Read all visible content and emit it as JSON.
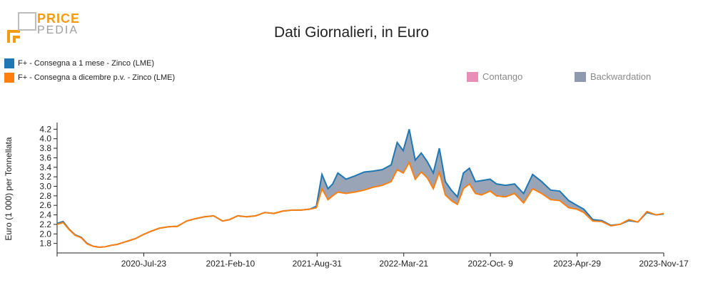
{
  "logo": {
    "line1": "PRICE",
    "line2": "PEDIA"
  },
  "chart_data": {
    "type": "area",
    "title": "Dati Giornalieri, in Euro",
    "ylabel": "Euro (1 000) per Tonnellata",
    "xlabel": "",
    "ylim": [
      1.6,
      4.25
    ],
    "yticks": [
      1.8,
      2.0,
      2.2,
      2.4,
      2.6,
      2.8,
      3.0,
      3.2,
      3.4,
      3.6,
      3.8,
      4.0,
      4.2
    ],
    "x_tick_labels": [
      "2020-Jul-23",
      "2021-Feb-10",
      "2021-Aug-31",
      "2022-Mar-21",
      "2022-Oct- 9",
      "2023-Apr-29",
      "2023-Nov-17"
    ],
    "x_start": "2020-01-06",
    "x_end": "2023-11-17",
    "legend": {
      "series_entries": [
        {
          "label": "F+ - Consegna a 1 mese - Zinco (LME)",
          "color": "#1f77b4"
        },
        {
          "label": "F+ - Consegna a dicembre p.v. - Zinco (LME)",
          "color": "#ff7f0e"
        }
      ],
      "area_entries": [
        {
          "label": "Contango",
          "color": "#e88fb8"
        },
        {
          "label": "Backwardation",
          "color": "#8e9aae"
        }
      ]
    },
    "dates": [
      "2020-01-06",
      "2020-01-20",
      "2020-02-03",
      "2020-02-17",
      "2020-03-02",
      "2020-03-16",
      "2020-03-30",
      "2020-04-13",
      "2020-04-27",
      "2020-05-11",
      "2020-05-25",
      "2020-06-08",
      "2020-06-22",
      "2020-07-06",
      "2020-07-23",
      "2020-08-10",
      "2020-08-31",
      "2020-09-21",
      "2020-10-12",
      "2020-11-02",
      "2020-11-23",
      "2020-12-14",
      "2021-01-04",
      "2021-01-25",
      "2021-02-10",
      "2021-03-01",
      "2021-03-22",
      "2021-04-12",
      "2021-05-03",
      "2021-05-24",
      "2021-06-14",
      "2021-07-05",
      "2021-07-26",
      "2021-08-16",
      "2021-08-31",
      "2021-09-13",
      "2021-09-27",
      "2021-10-08",
      "2021-10-20",
      "2021-11-08",
      "2021-11-29",
      "2021-12-20",
      "2022-01-10",
      "2022-01-31",
      "2022-02-21",
      "2022-03-07",
      "2022-03-21",
      "2022-04-04",
      "2022-04-18",
      "2022-05-02",
      "2022-05-16",
      "2022-05-30",
      "2022-06-13",
      "2022-06-27",
      "2022-07-11",
      "2022-07-25",
      "2022-08-08",
      "2022-08-22",
      "2022-09-05",
      "2022-09-19",
      "2022-10-09",
      "2022-10-24",
      "2022-11-14",
      "2022-12-05",
      "2022-12-26",
      "2023-01-16",
      "2023-02-06",
      "2023-02-27",
      "2023-03-20",
      "2023-04-10",
      "2023-04-29",
      "2023-05-15",
      "2023-06-05",
      "2023-06-26",
      "2023-07-17",
      "2023-08-07",
      "2023-08-28",
      "2023-09-18",
      "2023-10-09",
      "2023-10-30",
      "2023-11-17"
    ],
    "series": [
      {
        "name": "F+ - Consegna a 1 mese - Zinco (LME)",
        "color": "#1f77b4",
        "values": [
          2.22,
          2.26,
          2.1,
          1.98,
          1.93,
          1.8,
          1.74,
          1.72,
          1.73,
          1.76,
          1.78,
          1.82,
          1.86,
          1.9,
          1.98,
          2.05,
          2.12,
          2.15,
          2.16,
          2.27,
          2.32,
          2.36,
          2.38,
          2.27,
          2.3,
          2.38,
          2.36,
          2.38,
          2.45,
          2.43,
          2.48,
          2.5,
          2.5,
          2.52,
          2.58,
          3.25,
          2.95,
          3.05,
          3.28,
          3.15,
          3.22,
          3.3,
          3.32,
          3.35,
          3.45,
          3.92,
          3.75,
          4.2,
          3.55,
          3.7,
          3.52,
          3.28,
          3.8,
          3.1,
          2.92,
          2.78,
          3.28,
          3.38,
          3.1,
          3.12,
          3.15,
          3.05,
          3.02,
          3.05,
          2.85,
          3.25,
          3.1,
          2.92,
          2.9,
          2.7,
          2.6,
          2.52,
          2.3,
          2.28,
          2.18,
          2.2,
          2.28,
          2.25,
          2.45,
          2.4,
          2.42
        ]
      },
      {
        "name": "F+ - Consegna a dicembre p.v. - Zinco (LME)",
        "color": "#ff7f0e",
        "values": [
          2.2,
          2.24,
          2.09,
          1.97,
          1.92,
          1.79,
          1.74,
          1.72,
          1.73,
          1.76,
          1.78,
          1.82,
          1.86,
          1.9,
          1.98,
          2.05,
          2.12,
          2.15,
          2.16,
          2.27,
          2.32,
          2.36,
          2.38,
          2.27,
          2.3,
          2.38,
          2.36,
          2.38,
          2.45,
          2.43,
          2.48,
          2.5,
          2.5,
          2.52,
          2.55,
          2.95,
          2.72,
          2.8,
          2.88,
          2.85,
          2.88,
          2.92,
          2.98,
          3.02,
          3.1,
          3.35,
          3.28,
          3.5,
          3.15,
          3.3,
          3.18,
          2.95,
          3.3,
          2.82,
          2.7,
          2.62,
          2.95,
          3.05,
          2.85,
          2.82,
          2.9,
          2.8,
          2.78,
          2.85,
          2.65,
          2.95,
          2.85,
          2.72,
          2.7,
          2.55,
          2.52,
          2.45,
          2.27,
          2.26,
          2.17,
          2.2,
          2.3,
          2.25,
          2.47,
          2.4,
          2.43
        ]
      }
    ]
  }
}
